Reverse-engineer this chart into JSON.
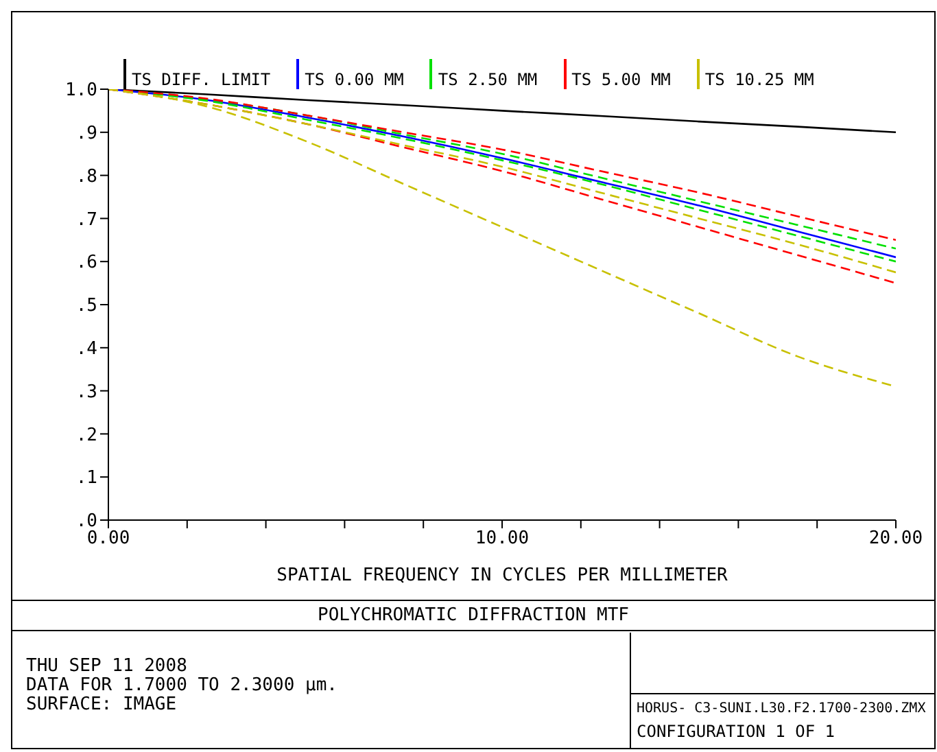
{
  "chart_data": {
    "type": "line",
    "title": "POLYCHROMATIC DIFFRACTION MTF",
    "xlabel": "SPATIAL FREQUENCY IN CYCLES PER MILLIMETER",
    "x": [
      0,
      2.5,
      5,
      7.5,
      10,
      12.5,
      15,
      17.5,
      20
    ],
    "series": [
      {
        "name": "TS DIFF. LIMIT",
        "color": "#000000",
        "line_style": "solid",
        "values": [
          1.0,
          0.988,
          0.975,
          0.963,
          0.95,
          0.938,
          0.925,
          0.913,
          0.9
        ]
      },
      {
        "name": "TS 0.00 MM",
        "color": "#0000ff",
        "line_style": "solid",
        "values": [
          1.0,
          0.975,
          0.935,
          0.89,
          0.84,
          0.785,
          0.73,
          0.67,
          0.61
        ]
      },
      {
        "name": "TS 2.50 MM",
        "color": "#00e000",
        "line_style": "dashed",
        "values": [
          1.0,
          0.977,
          0.94,
          0.895,
          0.85,
          0.795,
          0.74,
          0.685,
          0.63
        ]
      },
      {
        "color": "#00e000",
        "line_style": "dashed",
        "values": [
          1.0,
          0.973,
          0.93,
          0.885,
          0.835,
          0.78,
          0.72,
          0.66,
          0.6
        ]
      },
      {
        "name": "TS 5.00 MM",
        "color": "#ff0000",
        "line_style": "dashed",
        "values": [
          1.0,
          0.978,
          0.94,
          0.9,
          0.86,
          0.81,
          0.76,
          0.705,
          0.65
        ]
      },
      {
        "color": "#ff0000",
        "line_style": "dashed",
        "values": [
          1.0,
          0.965,
          0.92,
          0.865,
          0.81,
          0.745,
          0.68,
          0.615,
          0.55
        ]
      },
      {
        "name": "TS 10.25 MM",
        "color": "#c8c000",
        "line_style": "dashed",
        "values": [
          1.0,
          0.965,
          0.92,
          0.87,
          0.82,
          0.76,
          0.7,
          0.64,
          0.575
        ]
      },
      {
        "color": "#c8c000",
        "line_style": "dashed",
        "values": [
          1.0,
          0.96,
          0.88,
          0.78,
          0.68,
          0.58,
          0.48,
          0.38,
          0.31
        ]
      }
    ],
    "xlim": [
      0,
      20
    ],
    "xticks": [
      {
        "value": 0,
        "label": "0.00"
      },
      {
        "value": 2,
        "label": null
      },
      {
        "value": 4,
        "label": null
      },
      {
        "value": 6,
        "label": null
      },
      {
        "value": 8,
        "label": null
      },
      {
        "value": 10,
        "label": "10.00"
      },
      {
        "value": 12,
        "label": null
      },
      {
        "value": 14,
        "label": null
      },
      {
        "value": 16,
        "label": null
      },
      {
        "value": 18,
        "label": null
      },
      {
        "value": 20,
        "label": "20.00"
      }
    ],
    "ylim": [
      0,
      1
    ],
    "yticks": [
      {
        "value": 0,
        "label": ".0"
      },
      {
        "value": 0.1,
        "label": ".1"
      },
      {
        "value": 0.2,
        "label": ".2"
      },
      {
        "value": 0.3,
        "label": ".3"
      },
      {
        "value": 0.4,
        "label": ".4"
      },
      {
        "value": 0.5,
        "label": ".5"
      },
      {
        "value": 0.6,
        "label": ".6"
      },
      {
        "value": 0.7,
        "label": ".7"
      },
      {
        "value": 0.8,
        "label": ".8"
      },
      {
        "value": 0.9,
        "label": ".9"
      },
      {
        "value": 1,
        "label": "1.0"
      }
    ],
    "grid": false,
    "legend": "top",
    "marker": "none",
    "annotations": [
      "THU SEP 11 2008",
      "DATA FOR 1.7000 TO 2.3000 μm.",
      "SURFACE: IMAGE",
      "HORUS- C3-SUNI.L30.F2.1700-2300.ZMX",
      "CONFIGURATION 1 OF 1"
    ]
  }
}
